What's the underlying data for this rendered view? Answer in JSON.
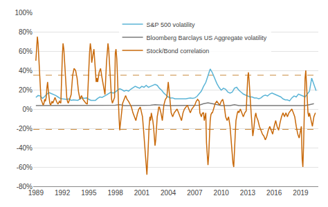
{
  "chart_data": {
    "type": "line",
    "xlim": [
      1988.7,
      2021.0
    ],
    "xticks": [
      1989,
      1992,
      1995,
      1998,
      2001,
      2004,
      2007,
      2010,
      2013,
      2016,
      2019
    ],
    "ylim": [
      -0.8,
      1.0
    ],
    "yticks": [
      {
        "value": -0.8,
        "label": "-80%"
      },
      {
        "value": -0.6,
        "label": "-60%"
      },
      {
        "value": -0.4,
        "label": "-40%"
      },
      {
        "value": -0.2,
        "label": "-20%"
      },
      {
        "value": 0.0,
        "label": "0%"
      },
      {
        "value": 0.2,
        "label": "20%"
      },
      {
        "value": 0.4,
        "label": "40%"
      },
      {
        "value": 0.6,
        "label": "60%"
      },
      {
        "value": 0.8,
        "label": "80%"
      },
      {
        "value": 1.0,
        "label": "100%"
      }
    ],
    "grid": true,
    "legend": "top",
    "hlines": [
      {
        "value": 0.35,
        "color": "#c8883a",
        "line_style": "dashed"
      },
      {
        "value": -0.21,
        "color": "#c8883a",
        "line_style": "dashed"
      }
    ],
    "series": [
      {
        "name": "S&P 500 volatility",
        "color": "#5ab4d6",
        "x": [
          1989.0,
          1989.25,
          1989.5,
          1989.75,
          1990.0,
          1990.25,
          1990.5,
          1990.75,
          1991.0,
          1991.25,
          1991.5,
          1991.75,
          1992.0,
          1992.25,
          1992.5,
          1992.75,
          1993.0,
          1993.25,
          1993.5,
          1993.75,
          1994.0,
          1994.25,
          1994.5,
          1994.75,
          1995.0,
          1995.25,
          1995.5,
          1995.75,
          1996.0,
          1996.25,
          1996.5,
          1996.75,
          1997.0,
          1997.25,
          1997.5,
          1997.75,
          1998.0,
          1998.25,
          1998.5,
          1998.75,
          1999.0,
          1999.25,
          1999.5,
          1999.75,
          2000.0,
          2000.25,
          2000.5,
          2000.75,
          2001.0,
          2001.25,
          2001.5,
          2001.75,
          2002.0,
          2002.25,
          2002.5,
          2002.75,
          2003.0,
          2003.25,
          2003.5,
          2003.75,
          2004.0,
          2004.25,
          2004.5,
          2004.75,
          2005.0,
          2005.25,
          2005.5,
          2005.75,
          2006.0,
          2006.25,
          2006.5,
          2006.75,
          2007.0,
          2007.25,
          2007.5,
          2007.75,
          2008.0,
          2008.25,
          2008.5,
          2008.75,
          2009.0,
          2009.25,
          2009.5,
          2009.75,
          2010.0,
          2010.25,
          2010.5,
          2010.75,
          2011.0,
          2011.25,
          2011.5,
          2011.75,
          2012.0,
          2012.25,
          2012.5,
          2012.75,
          2013.0,
          2013.25,
          2013.5,
          2013.75,
          2014.0,
          2014.25,
          2014.5,
          2014.75,
          2015.0,
          2015.25,
          2015.5,
          2015.75,
          2016.0,
          2016.25,
          2016.5,
          2016.75,
          2017.0,
          2017.25,
          2017.5,
          2017.75,
          2018.0,
          2018.25,
          2018.5,
          2018.75,
          2019.0,
          2019.25,
          2019.5,
          2019.75,
          2020.0,
          2020.25,
          2020.5,
          2020.75
        ],
        "values": [
          0.12,
          0.14,
          0.135,
          0.11,
          0.13,
          0.155,
          0.17,
          0.16,
          0.155,
          0.14,
          0.125,
          0.11,
          0.105,
          0.1,
          0.1,
          0.105,
          0.09,
          0.095,
          0.09,
          0.09,
          0.105,
          0.115,
          0.11,
          0.115,
          0.1,
          0.09,
          0.09,
          0.09,
          0.11,
          0.125,
          0.12,
          0.13,
          0.145,
          0.16,
          0.175,
          0.165,
          0.175,
          0.195,
          0.21,
          0.2,
          0.185,
          0.195,
          0.185,
          0.205,
          0.22,
          0.235,
          0.225,
          0.215,
          0.235,
          0.225,
          0.245,
          0.225,
          0.235,
          0.245,
          0.255,
          0.245,
          0.215,
          0.195,
          0.165,
          0.145,
          0.125,
          0.115,
          0.115,
          0.105,
          0.105,
          0.1,
          0.105,
          0.1,
          0.105,
          0.11,
          0.115,
          0.11,
          0.115,
          0.13,
          0.155,
          0.185,
          0.235,
          0.275,
          0.345,
          0.415,
          0.375,
          0.315,
          0.265,
          0.225,
          0.195,
          0.215,
          0.205,
          0.175,
          0.165,
          0.175,
          0.215,
          0.225,
          0.195,
          0.175,
          0.155,
          0.145,
          0.135,
          0.125,
          0.125,
          0.115,
          0.115,
          0.105,
          0.115,
          0.135,
          0.145,
          0.135,
          0.155,
          0.165,
          0.155,
          0.145,
          0.135,
          0.125,
          0.105,
          0.095,
          0.095,
          0.085,
          0.115,
          0.135,
          0.125,
          0.155,
          0.145,
          0.135,
          0.125,
          0.155,
          0.185,
          0.32,
          0.26,
          0.19
        ]
      },
      {
        "name": "Bloomberg Barclays US Aggregate volatility",
        "color": "#7a7a7a",
        "x": [
          1989.0,
          1989.5,
          1990.0,
          1990.5,
          1991.0,
          1991.5,
          1992.0,
          1992.5,
          1993.0,
          1993.5,
          1994.0,
          1994.5,
          1995.0,
          1995.5,
          1996.0,
          1996.5,
          1997.0,
          1997.5,
          1998.0,
          1998.5,
          1999.0,
          1999.5,
          2000.0,
          2000.5,
          2001.0,
          2001.5,
          2002.0,
          2002.5,
          2003.0,
          2003.5,
          2004.0,
          2004.5,
          2005.0,
          2005.5,
          2006.0,
          2006.5,
          2007.0,
          2007.5,
          2008.0,
          2008.5,
          2009.0,
          2009.5,
          2010.0,
          2010.5,
          2011.0,
          2011.5,
          2012.0,
          2012.5,
          2013.0,
          2013.5,
          2014.0,
          2014.5,
          2015.0,
          2015.5,
          2016.0,
          2016.5,
          2017.0,
          2017.5,
          2018.0,
          2018.5,
          2019.0,
          2019.5,
          2020.0,
          2020.5
        ],
        "values": [
          0.035,
          0.035,
          0.04,
          0.04,
          0.035,
          0.035,
          0.035,
          0.035,
          0.035,
          0.035,
          0.04,
          0.04,
          0.035,
          0.035,
          0.035,
          0.035,
          0.035,
          0.04,
          0.04,
          0.045,
          0.035,
          0.035,
          0.035,
          0.04,
          0.04,
          0.04,
          0.04,
          0.045,
          0.04,
          0.04,
          0.035,
          0.035,
          0.035,
          0.035,
          0.035,
          0.035,
          0.035,
          0.04,
          0.055,
          0.065,
          0.055,
          0.045,
          0.035,
          0.035,
          0.035,
          0.045,
          0.035,
          0.035,
          0.04,
          0.035,
          0.035,
          0.035,
          0.035,
          0.035,
          0.035,
          0.035,
          0.03,
          0.03,
          0.035,
          0.035,
          0.035,
          0.035,
          0.045,
          0.055
        ]
      },
      {
        "name": "Stock/Bond correlation",
        "color": "#c8690a",
        "x": [
          1989.0,
          1989.08,
          1989.17,
          1989.25,
          1989.33,
          1989.42,
          1989.5,
          1989.58,
          1989.67,
          1989.75,
          1989.83,
          1989.92,
          1990.0,
          1990.08,
          1990.17,
          1990.25,
          1990.33,
          1990.42,
          1990.5,
          1990.58,
          1990.67,
          1990.75,
          1990.83,
          1990.92,
          1991.0,
          1991.17,
          1991.33,
          1991.5,
          1991.67,
          1991.83,
          1992.0,
          1992.08,
          1992.17,
          1992.25,
          1992.33,
          1992.42,
          1992.5,
          1992.58,
          1992.67,
          1992.75,
          1992.83,
          1992.92,
          1993.0,
          1993.17,
          1993.33,
          1993.5,
          1993.67,
          1993.83,
          1994.0,
          1994.17,
          1994.33,
          1994.5,
          1994.67,
          1994.83,
          1995.0,
          1995.08,
          1995.17,
          1995.25,
          1995.33,
          1995.42,
          1995.5,
          1995.58,
          1995.67,
          1995.75,
          1995.83,
          1995.92,
          1996.0,
          1996.17,
          1996.33,
          1996.5,
          1996.67,
          1996.83,
          1997.0,
          1997.08,
          1997.17,
          1997.25,
          1997.33,
          1997.42,
          1997.5,
          1997.58,
          1997.67,
          1997.75,
          1997.83,
          1997.92,
          1998.0,
          1998.08,
          1998.17,
          1998.25,
          1998.33,
          1998.42,
          1998.5,
          1998.58,
          1998.67,
          1998.75,
          1998.83,
          1998.92,
          1999.0,
          1999.17,
          1999.33,
          1999.5,
          1999.67,
          1999.83,
          2000.0,
          2000.17,
          2000.33,
          2000.5,
          2000.67,
          2000.83,
          2001.0,
          2001.08,
          2001.17,
          2001.25,
          2001.33,
          2001.42,
          2001.5,
          2001.58,
          2001.67,
          2001.75,
          2001.83,
          2001.92,
          2002.0,
          2002.08,
          2002.17,
          2002.25,
          2002.33,
          2002.42,
          2002.5,
          2002.58,
          2002.67,
          2002.75,
          2002.83,
          2002.92,
          2003.0,
          2003.17,
          2003.33,
          2003.5,
          2003.67,
          2003.83,
          2004.0,
          2004.17,
          2004.33,
          2004.5,
          2004.67,
          2004.83,
          2005.0,
          2005.17,
          2005.33,
          2005.5,
          2005.67,
          2005.83,
          2006.0,
          2006.17,
          2006.33,
          2006.5,
          2006.67,
          2006.83,
          2007.0,
          2007.17,
          2007.33,
          2007.5,
          2007.58,
          2007.75,
          2007.83,
          2007.92,
          2008.0,
          2008.08,
          2008.17,
          2008.25,
          2008.33,
          2008.42,
          2008.5,
          2008.58,
          2008.67,
          2008.75,
          2008.83,
          2008.92,
          2009.0,
          2009.17,
          2009.33,
          2009.5,
          2009.67,
          2009.83,
          2010.0,
          2010.17,
          2010.33,
          2010.5,
          2010.67,
          2010.83,
          2011.0,
          2011.08,
          2011.17,
          2011.25,
          2011.33,
          2011.42,
          2011.5,
          2011.58,
          2011.67,
          2011.75,
          2011.83,
          2011.92,
          2012.0,
          2012.17,
          2012.33,
          2012.5,
          2012.67,
          2012.83,
          2013.0,
          2013.08,
          2013.17,
          2013.25,
          2013.33,
          2013.42,
          2013.5,
          2013.58,
          2013.67,
          2013.75,
          2013.83,
          2013.92,
          2014.0,
          2014.17,
          2014.33,
          2014.5,
          2014.67,
          2014.83,
          2015.0,
          2015.17,
          2015.33,
          2015.5,
          2015.67,
          2015.83,
          2016.0,
          2016.17,
          2016.33,
          2016.5,
          2016.67,
          2016.83,
          2017.0,
          2017.17,
          2017.33,
          2017.5,
          2017.67,
          2017.83,
          2018.0,
          2018.17,
          2018.33,
          2018.5,
          2018.67,
          2018.83,
          2019.0,
          2019.08,
          2019.17,
          2019.25,
          2019.33,
          2019.42,
          2019.5,
          2019.58,
          2019.67,
          2019.75,
          2019.83,
          2019.92,
          2020.0,
          2020.17,
          2020.33,
          2020.5,
          2020.67
        ],
        "values": [
          0.5,
          0.62,
          0.75,
          0.68,
          0.52,
          0.38,
          0.22,
          0.1,
          0.08,
          0.06,
          0.04,
          0.06,
          0.1,
          0.08,
          0.12,
          0.22,
          0.28,
          0.18,
          0.12,
          0.06,
          0.04,
          0.06,
          0.08,
          0.06,
          0.08,
          0.12,
          0.08,
          0.05,
          0.08,
          0.06,
          0.55,
          0.68,
          0.62,
          0.48,
          0.35,
          0.22,
          0.12,
          0.08,
          0.06,
          0.08,
          0.1,
          0.12,
          0.15,
          0.35,
          0.42,
          0.4,
          0.32,
          0.18,
          0.1,
          0.14,
          0.1,
          0.08,
          0.06,
          0.05,
          0.52,
          0.58,
          0.68,
          0.62,
          0.48,
          0.52,
          0.58,
          0.62,
          0.52,
          0.38,
          0.28,
          0.32,
          0.28,
          0.38,
          0.42,
          0.32,
          0.22,
          0.15,
          0.48,
          0.62,
          0.68,
          0.62,
          0.48,
          0.32,
          0.18,
          0.1,
          0.06,
          0.08,
          0.1,
          0.12,
          0.58,
          0.62,
          0.52,
          0.28,
          0.08,
          -0.08,
          -0.22,
          -0.15,
          -0.08,
          0.0,
          0.06,
          0.08,
          0.1,
          0.14,
          0.1,
          0.08,
          0.05,
          0.02,
          -0.04,
          -0.08,
          -0.12,
          -0.05,
          0.0,
          0.02,
          -0.04,
          -0.08,
          -0.18,
          -0.28,
          -0.38,
          -0.48,
          -0.62,
          -0.68,
          -0.52,
          -0.32,
          -0.18,
          -0.08,
          -0.12,
          -0.04,
          -0.08,
          -0.12,
          -0.18,
          -0.28,
          -0.38,
          -0.32,
          -0.18,
          -0.08,
          -0.04,
          0.02,
          0.02,
          -0.04,
          -0.12,
          0.04,
          0.1,
          0.12,
          0.28,
          0.08,
          -0.04,
          -0.08,
          -0.04,
          -0.02,
          0.0,
          -0.04,
          -0.08,
          -0.12,
          -0.04,
          0.0,
          0.02,
          0.04,
          0.0,
          -0.04,
          0.0,
          0.02,
          0.04,
          0.08,
          0.1,
          0.08,
          -0.04,
          -0.08,
          -0.05,
          -0.04,
          -0.04,
          -0.12,
          -0.08,
          -0.04,
          -0.35,
          -0.52,
          -0.58,
          -0.48,
          -0.28,
          -0.12,
          -0.06,
          -0.04,
          -0.04,
          0.02,
          0.06,
          0.08,
          0.06,
          0.04,
          0.08,
          0.1,
          0.04,
          -0.08,
          -0.12,
          -0.08,
          -0.18,
          -0.28,
          -0.38,
          -0.5,
          -0.56,
          -0.6,
          -0.48,
          -0.28,
          -0.12,
          -0.06,
          -0.04,
          -0.02,
          -0.04,
          0.0,
          -0.04,
          -0.08,
          -0.04,
          -0.02,
          0.32,
          0.38,
          0.28,
          0.12,
          0.04,
          -0.08,
          -0.18,
          -0.28,
          -0.22,
          -0.12,
          -0.08,
          -0.04,
          -0.08,
          -0.12,
          -0.18,
          -0.22,
          -0.26,
          -0.28,
          -0.32,
          -0.28,
          -0.22,
          -0.18,
          -0.22,
          -0.26,
          -0.18,
          -0.12,
          -0.18,
          -0.22,
          -0.14,
          -0.08,
          -0.04,
          -0.08,
          -0.04,
          -0.08,
          -0.04,
          -0.02,
          0.0,
          -0.04,
          -0.08,
          -0.18,
          -0.26,
          -0.3,
          -0.22,
          -0.18,
          -0.52,
          -0.6,
          -0.38,
          0.18,
          0.32,
          0.4,
          0.28,
          0.1,
          -0.04,
          -0.08,
          -0.04,
          -0.12,
          -0.18,
          -0.08,
          -0.04
        ]
      }
    ]
  }
}
